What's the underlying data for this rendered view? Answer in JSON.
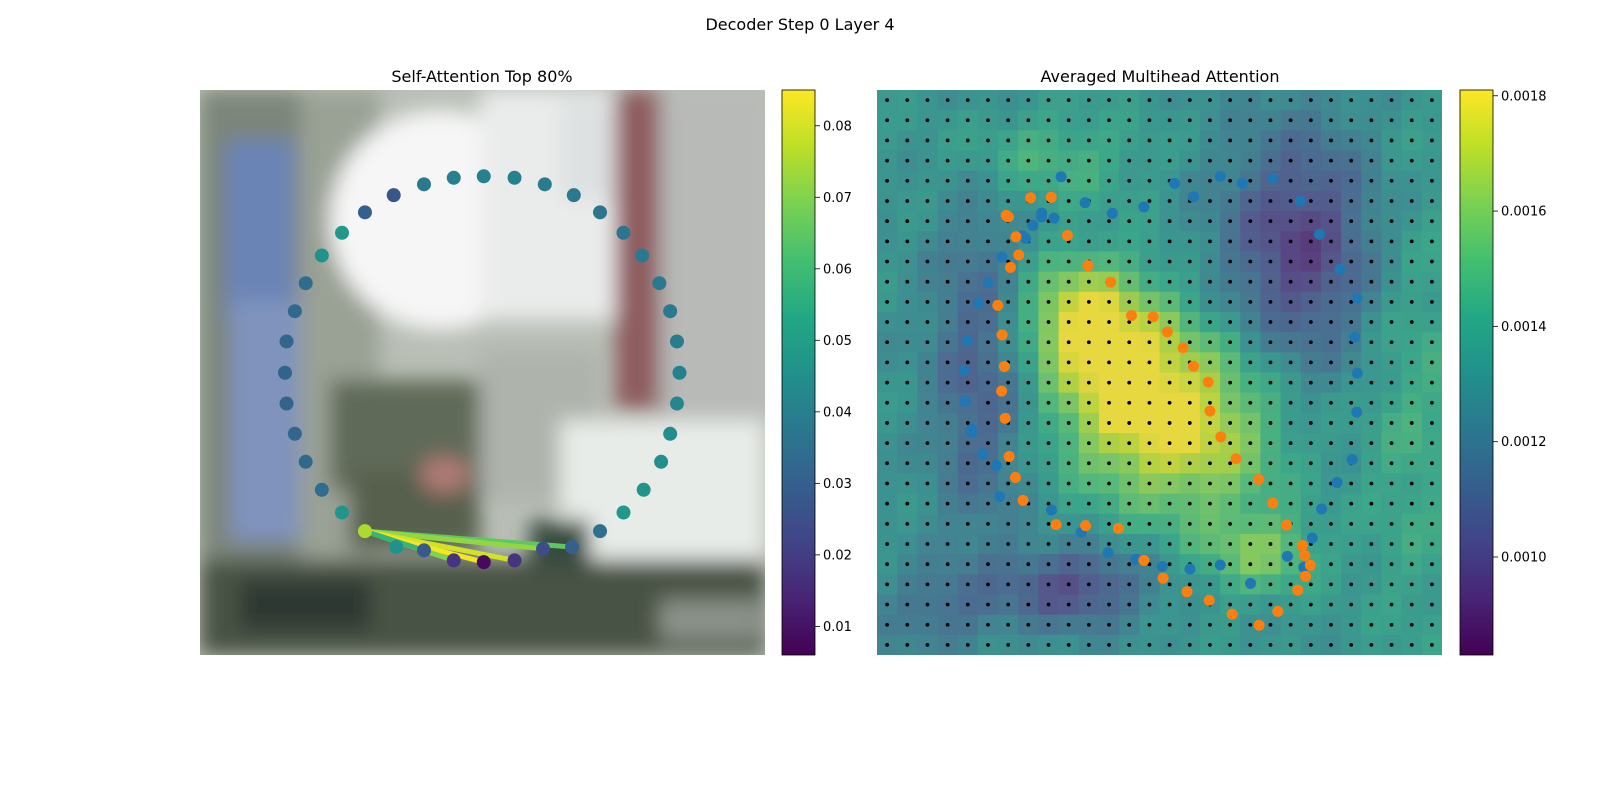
{
  "figure": {
    "suptitle": "Decoder Step 0 Layer 4"
  },
  "chart_data": [
    {
      "type": "scatter",
      "title": "Self-Attention Top 80%",
      "colormap": "viridis",
      "colorbar": {
        "range": [
          0.006,
          0.085
        ],
        "ticks": [
          0.01,
          0.02,
          0.03,
          0.04,
          0.05,
          0.06,
          0.07,
          0.08
        ],
        "tick_labels": [
          "0.01",
          "0.02",
          "0.03",
          "0.04",
          "0.05",
          "0.06",
          "0.07",
          "0.08"
        ]
      },
      "image_extent": [
        0,
        224
      ],
      "points": [
        {
          "x": 112.5,
          "y": 34.2,
          "v": 0.04
        },
        {
          "x": 124.7,
          "y": 34.8,
          "v": 0.04
        },
        {
          "x": 136.7,
          "y": 37.4,
          "v": 0.039
        },
        {
          "x": 148.2,
          "y": 41.7,
          "v": 0.038
        },
        {
          "x": 158.6,
          "y": 48.5,
          "v": 0.037
        },
        {
          "x": 167.9,
          "y": 56.6,
          "v": 0.037
        },
        {
          "x": 175.3,
          "y": 65.6,
          "v": 0.038
        },
        {
          "x": 182.1,
          "y": 76.6,
          "v": 0.038
        },
        {
          "x": 186.4,
          "y": 87.7,
          "v": 0.038
        },
        {
          "x": 189.1,
          "y": 99.7,
          "v": 0.039
        },
        {
          "x": 190.1,
          "y": 112.1,
          "v": 0.04
        },
        {
          "x": 189.1,
          "y": 124.3,
          "v": 0.042
        },
        {
          "x": 186.4,
          "y": 136.3,
          "v": 0.044
        },
        {
          "x": 182.8,
          "y": 147.4,
          "v": 0.045
        },
        {
          "x": 175.9,
          "y": 158.5,
          "v": 0.047
        },
        {
          "x": 167.9,
          "y": 167.5,
          "v": 0.048
        },
        {
          "x": 158.6,
          "y": 174.9,
          "v": 0.035
        },
        {
          "x": 147.5,
          "y": 181.2,
          "v": 0.03
        },
        {
          "x": 136.0,
          "y": 181.9,
          "v": 0.024
        },
        {
          "x": 124.7,
          "y": 186.5,
          "v": 0.018
        },
        {
          "x": 112.5,
          "y": 187.2,
          "v": 0.008
        },
        {
          "x": 100.6,
          "y": 186.5,
          "v": 0.018
        },
        {
          "x": 88.8,
          "y": 182.5,
          "v": 0.028
        },
        {
          "x": 77.8,
          "y": 181.2,
          "v": 0.046
        },
        {
          "x": 65.4,
          "y": 174.9,
          "v": 0.075
        },
        {
          "x": 56.3,
          "y": 167.5,
          "v": 0.047
        },
        {
          "x": 48.3,
          "y": 158.5,
          "v": 0.034
        },
        {
          "x": 41.9,
          "y": 147.4,
          "v": 0.033
        },
        {
          "x": 37.6,
          "y": 136.3,
          "v": 0.032
        },
        {
          "x": 34.3,
          "y": 124.3,
          "v": 0.031
        },
        {
          "x": 33.7,
          "y": 112.1,
          "v": 0.031
        },
        {
          "x": 34.3,
          "y": 99.7,
          "v": 0.032
        },
        {
          "x": 37.6,
          "y": 87.7,
          "v": 0.033
        },
        {
          "x": 41.9,
          "y": 76.6,
          "v": 0.034
        },
        {
          "x": 48.3,
          "y": 65.6,
          "v": 0.046
        },
        {
          "x": 56.3,
          "y": 56.6,
          "v": 0.048
        },
        {
          "x": 65.4,
          "y": 48.5,
          "v": 0.03
        },
        {
          "x": 76.8,
          "y": 41.7,
          "v": 0.027
        },
        {
          "x": 88.8,
          "y": 37.4,
          "v": 0.038
        },
        {
          "x": 100.6,
          "y": 34.8,
          "v": 0.04
        }
      ],
      "attention_lines": [
        {
          "from": 24,
          "to": 17,
          "v": 0.065
        },
        {
          "from": 24,
          "to": 18,
          "v": 0.072
        },
        {
          "from": 24,
          "to": 19,
          "v": 0.08
        },
        {
          "from": 24,
          "to": 20,
          "v": 0.084
        },
        {
          "from": 24,
          "to": 21,
          "v": 0.07
        },
        {
          "from": 24,
          "to": 22,
          "v": 0.058
        }
      ]
    },
    {
      "type": "heatmap",
      "title": "Averaged Multihead Attention",
      "colormap": "viridis",
      "colorbar": {
        "range": [
          0.00083,
          0.00181
        ],
        "ticks": [
          0.001,
          0.0012,
          0.0014,
          0.0016,
          0.0018
        ],
        "tick_labels": [
          "0.0010",
          "0.0012",
          "0.0014",
          "0.0016",
          "0.0018"
        ]
      },
      "grid_size": 28,
      "hotspots": [
        {
          "cx": 0.43,
          "cy": 0.52,
          "sx": 0.09,
          "sy": 0.12,
          "a": 1.0
        },
        {
          "cx": 0.35,
          "cy": 0.4,
          "sx": 0.07,
          "sy": 0.07,
          "a": 0.75
        },
        {
          "cx": 0.58,
          "cy": 0.6,
          "sx": 0.1,
          "sy": 0.12,
          "a": 0.85
        },
        {
          "cx": 0.68,
          "cy": 0.82,
          "sx": 0.07,
          "sy": 0.05,
          "a": 0.55
        },
        {
          "cx": 0.3,
          "cy": 0.12,
          "sx": 0.12,
          "sy": 0.06,
          "a": 0.35
        },
        {
          "cx": 0.95,
          "cy": 0.55,
          "sx": 0.07,
          "sy": 0.3,
          "a": 0.3
        }
      ],
      "coldspots": [
        {
          "cx": 0.75,
          "cy": 0.28,
          "sx": 0.1,
          "sy": 0.15,
          "a": 0.9
        },
        {
          "cx": 0.18,
          "cy": 0.5,
          "sx": 0.06,
          "sy": 0.22,
          "a": 0.6
        },
        {
          "cx": 0.35,
          "cy": 0.88,
          "sx": 0.09,
          "sy": 0.05,
          "a": 0.8
        },
        {
          "cx": 0.1,
          "cy": 0.92,
          "sx": 0.07,
          "sy": 0.05,
          "a": 0.4
        }
      ],
      "blue_points": [
        [
          73,
          34.4
        ],
        [
          82.5,
          44.7
        ],
        [
          93.3,
          48.9
        ],
        [
          105.8,
          46.4
        ],
        [
          118,
          37
        ],
        [
          125.5,
          42.3
        ],
        [
          136.1,
          34.2
        ],
        [
          144.8,
          37
        ],
        [
          157,
          35
        ],
        [
          167.8,
          44
        ],
        [
          175.4,
          57.2
        ],
        [
          183.5,
          71.1
        ],
        [
          190.3,
          82.5
        ],
        [
          189.4,
          98
        ],
        [
          190.4,
          112.3
        ],
        [
          190.2,
          127.7
        ],
        [
          188.4,
          146.5
        ],
        [
          182.4,
          155.6
        ],
        [
          176.3,
          166.1
        ],
        [
          172.6,
          177.6
        ],
        [
          169.2,
          189.2
        ],
        [
          162.7,
          184.9
        ],
        [
          148.1,
          195.6
        ],
        [
          136.1,
          188.3
        ],
        [
          124.1,
          189.9
        ],
        [
          113.1,
          188.9
        ],
        [
          102.6,
          186.1
        ],
        [
          91.6,
          183.4
        ],
        [
          81,
          175.4
        ],
        [
          69.2,
          166.5
        ],
        [
          48.7,
          161.2
        ],
        [
          42,
          144.3
        ],
        [
          37.6,
          135.8
        ],
        [
          34.9,
          123.4
        ],
        [
          34.5,
          111.2
        ],
        [
          35.8,
          99.3
        ],
        [
          40.2,
          84.5
        ],
        [
          44.1,
          76.3
        ],
        [
          49.5,
          66.2
        ],
        [
          57.5,
          57.8
        ],
        [
          65.3,
          48.8
        ],
        [
          58.9,
          58.8
        ],
        [
          61.8,
          53.7
        ],
        [
          65.2,
          50.3
        ],
        [
          70.2,
          50.8
        ],
        [
          47.3,
          148.9
        ],
        [
          37.6,
          134.5
        ]
      ],
      "orange_points": [
        [
          60.9,
          42.7
        ],
        [
          69.1,
          42.5
        ],
        [
          75.5,
          57.7
        ],
        [
          52.1,
          50.3
        ],
        [
          55.1,
          58.2
        ],
        [
          51.2,
          49.7
        ],
        [
          52.9,
          70.3
        ],
        [
          83.6,
          69.6
        ],
        [
          92.6,
          76.2
        ],
        [
          100.9,
          89.4
        ],
        [
          109.5,
          89.9
        ],
        [
          115.1,
          95.9
        ],
        [
          121.4,
          102.2
        ],
        [
          125.5,
          109.5
        ],
        [
          131.3,
          115.8
        ],
        [
          132,
          127.3
        ],
        [
          136.3,
          137.5
        ],
        [
          142.3,
          146.2
        ],
        [
          151.4,
          154.4
        ],
        [
          156.9,
          163.8
        ],
        [
          162.4,
          172.5
        ],
        [
          168.6,
          180.6
        ],
        [
          169.6,
          184.5
        ],
        [
          171.8,
          188.4
        ],
        [
          169.9,
          192.8
        ],
        [
          166.8,
          198.3
        ],
        [
          158.9,
          206.7
        ],
        [
          151.5,
          212.2
        ],
        [
          140.8,
          207.8
        ],
        [
          131.7,
          202.3
        ],
        [
          122.9,
          198.9
        ],
        [
          113.4,
          193.5
        ],
        [
          105.8,
          186.5
        ],
        [
          95.7,
          173.8
        ],
        [
          82.7,
          172.7
        ],
        [
          71,
          172.3
        ],
        [
          57.9,
          162.7
        ],
        [
          54.9,
          153.6
        ],
        [
          52.4,
          145.3
        ],
        [
          50.8,
          130.2
        ],
        [
          49.4,
          119.4
        ],
        [
          50.5,
          109.6
        ],
        [
          49.6,
          97.1
        ],
        [
          47.9,
          85.4
        ],
        [
          56.2,
          65.4
        ]
      ]
    }
  ]
}
